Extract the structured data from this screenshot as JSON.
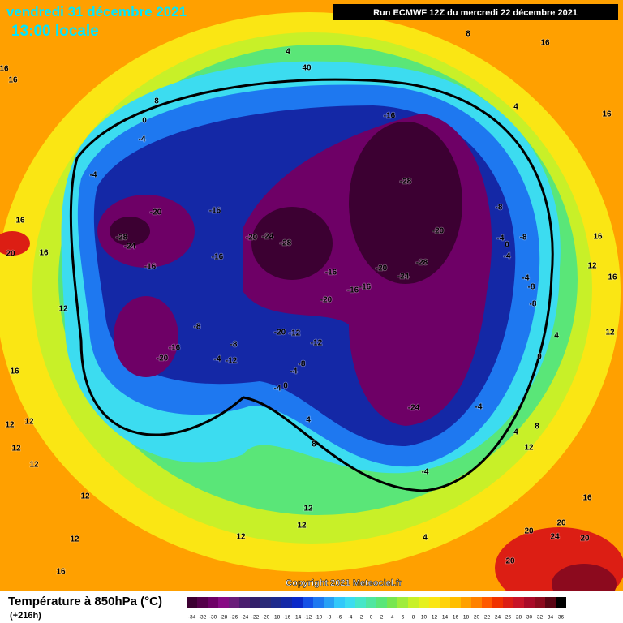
{
  "header": {
    "date": "vendredi 31 décembre 2021",
    "time": "13:00 locale",
    "run": "Run ECMWF 12Z du mercredi 22 décembre 2021"
  },
  "map": {
    "contour_labels": [
      -16,
      -28,
      -20,
      -28,
      -24,
      -20,
      -16,
      -16,
      -16,
      -20,
      -28,
      -24,
      -20,
      -16,
      -16,
      -20,
      -28,
      -24,
      -16,
      -20,
      -16,
      -8,
      -8,
      -4,
      -12,
      -20,
      -12,
      -12,
      -8,
      -4,
      0,
      -4,
      -24,
      -4,
      -4,
      4,
      -8,
      -4,
      0,
      -8,
      -4,
      -4,
      -8,
      -8,
      4,
      0,
      4,
      8,
      12,
      4,
      8,
      12,
      12,
      12,
      12,
      12,
      16,
      12,
      12,
      12,
      12,
      16,
      12,
      16,
      16,
      20,
      16,
      16,
      4,
      8,
      4,
      40,
      0,
      8,
      -4,
      -4,
      16,
      12,
      16,
      12,
      16,
      20,
      20,
      24,
      20,
      20,
      16,
      16
    ],
    "copyright": "Copyright 2021 Meteociel.fr"
  },
  "legend": {
    "title": "Température à 850hPa (°C)",
    "lead": "(+216h)",
    "ticks": [
      -34,
      -32,
      -30,
      -28,
      -26,
      -24,
      -22,
      -20,
      -18,
      -16,
      -14,
      -12,
      -10,
      -8,
      -6,
      -4,
      -2,
      0,
      2,
      4,
      6,
      8,
      10,
      12,
      14,
      16,
      18,
      20,
      22,
      24,
      26,
      28,
      30,
      32,
      34,
      36
    ],
    "colors": [
      "#3c0032",
      "#55004a",
      "#6e0066",
      "#870a84",
      "#6a1e7a",
      "#4a1e6e",
      "#33206a",
      "#2a2a78",
      "#1e2a8c",
      "#1428a6",
      "#0a28c8",
      "#1450e6",
      "#1e78f0",
      "#28a0f5",
      "#32c8fa",
      "#3cdcf0",
      "#46e6c8",
      "#50e6a0",
      "#5ae678",
      "#78e650",
      "#a0ec3c",
      "#c8f028",
      "#e6f01e",
      "#fae614",
      "#ffd20a",
      "#ffbe00",
      "#ffa000",
      "#ff8200",
      "#ff5a00",
      "#f03200",
      "#dc1e14",
      "#c81428",
      "#aa0a28",
      "#8c0a1e",
      "#5a0514",
      "#000000"
    ]
  }
}
